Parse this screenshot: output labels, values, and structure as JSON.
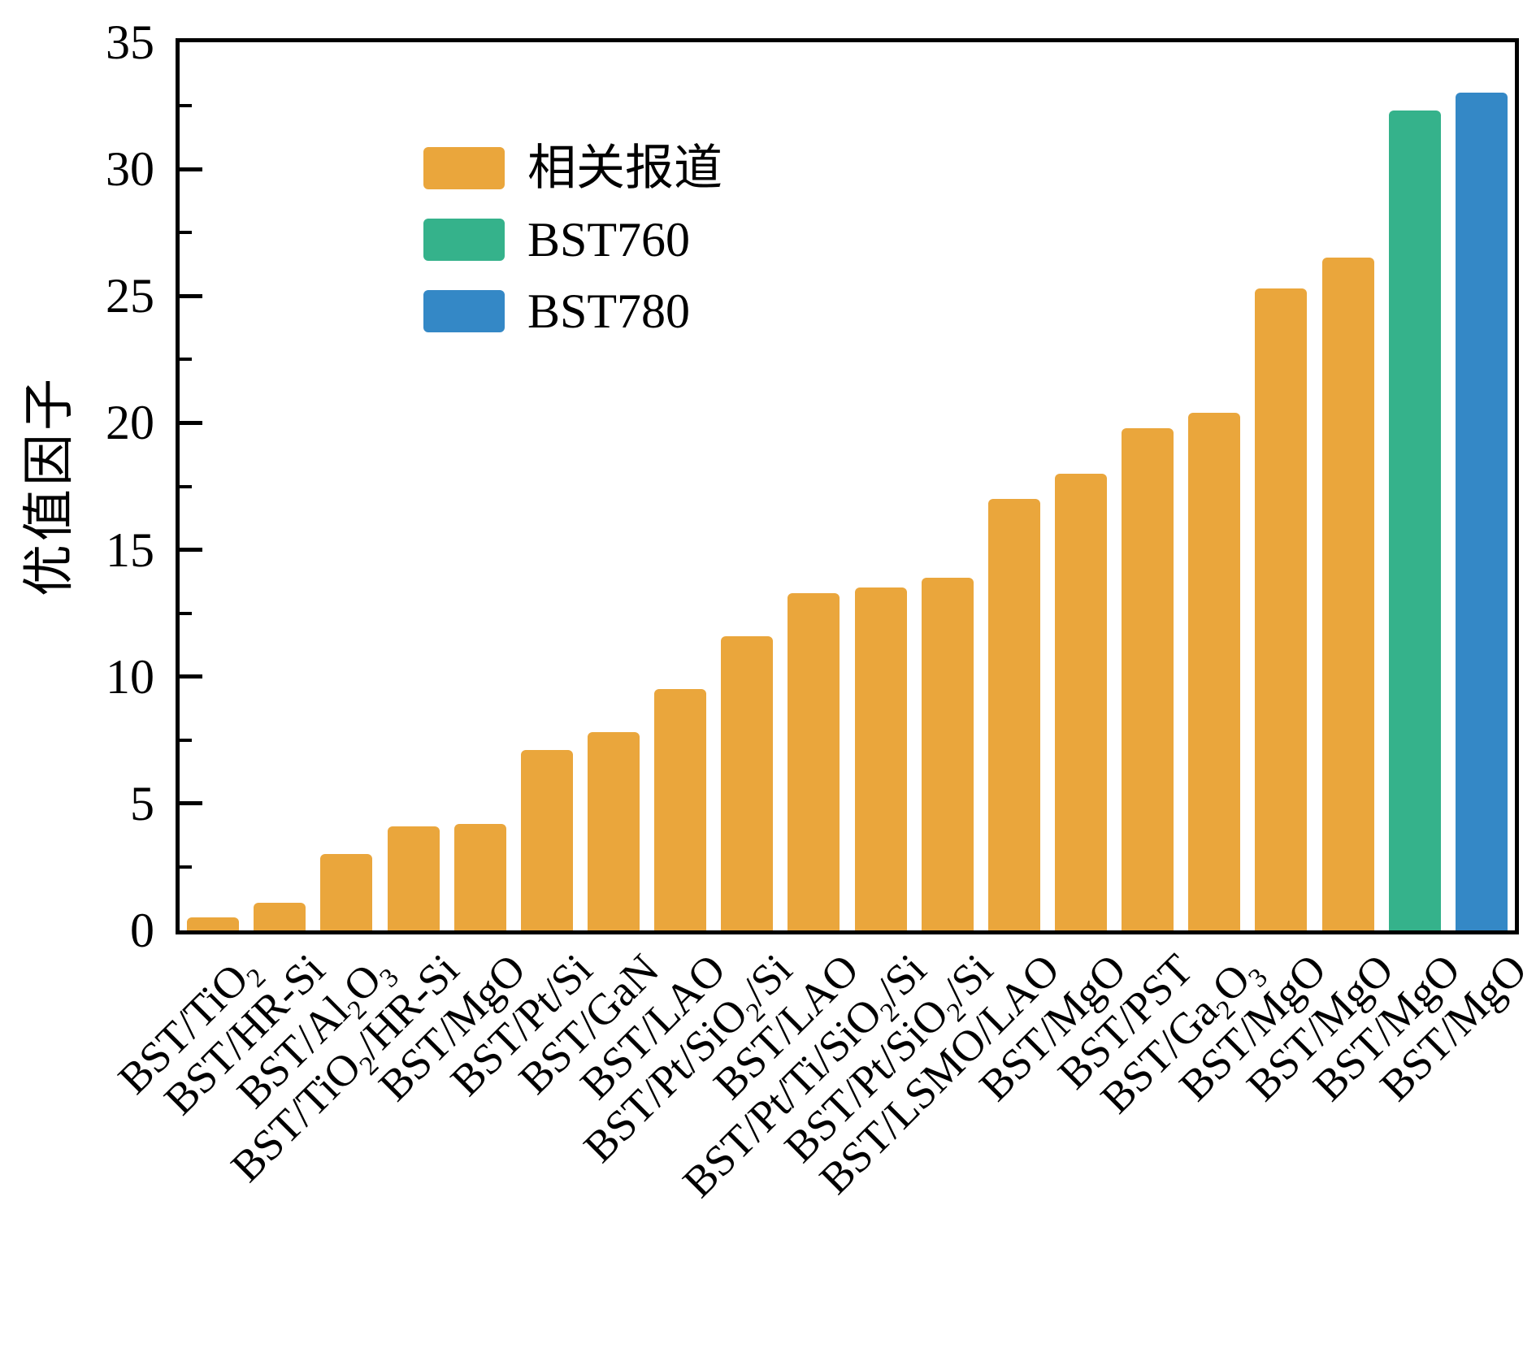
{
  "chart_data": {
    "type": "bar",
    "title": "",
    "ylabel": "优值因子",
    "xlabel": "",
    "ylim": [
      0,
      35
    ],
    "yticks": [
      0,
      5,
      10,
      15,
      20,
      25,
      30,
      35
    ],
    "yticks_minor": [
      2.5,
      7.5,
      12.5,
      17.5,
      22.5,
      27.5,
      32.5
    ],
    "grid": "off",
    "legend_position": "upper-left-inside",
    "categories": [
      "BST/TiO₂",
      "BST/HR-Si",
      "BST/Al₂O₃",
      "BST/TiO₂/HR-Si",
      "BST/MgO",
      "BST/Pt/Si",
      "BST/GaN",
      "BST/LAO",
      "BST/Pt/SiO₂/Si",
      "BST/LAO",
      "BST/Pt/Ti/SiO₂/Si",
      "BST/Pt/SiO₂/Si",
      "BST/LSMO/LAO",
      "BST/MgO",
      "BST/PST",
      "BST/Ga₂O₃",
      "BST/MgO",
      "BST/MgO",
      "BST/MgO",
      "BST/MgO"
    ],
    "values": [
      0.5,
      1.1,
      3.0,
      4.1,
      4.2,
      7.1,
      7.8,
      9.5,
      11.6,
      13.3,
      13.5,
      13.9,
      17.0,
      18.0,
      19.8,
      20.4,
      25.3,
      26.5,
      32.3,
      33.0
    ],
    "bar_series_index": [
      0,
      0,
      0,
      0,
      0,
      0,
      0,
      0,
      0,
      0,
      0,
      0,
      0,
      0,
      0,
      0,
      0,
      0,
      1,
      2
    ],
    "series": [
      {
        "name": "相关报道",
        "color": "#EAA63C"
      },
      {
        "name": "BST760",
        "color": "#35B28B"
      },
      {
        "name": "BST780",
        "color": "#3488C6"
      }
    ],
    "axis_color": "#000000"
  }
}
